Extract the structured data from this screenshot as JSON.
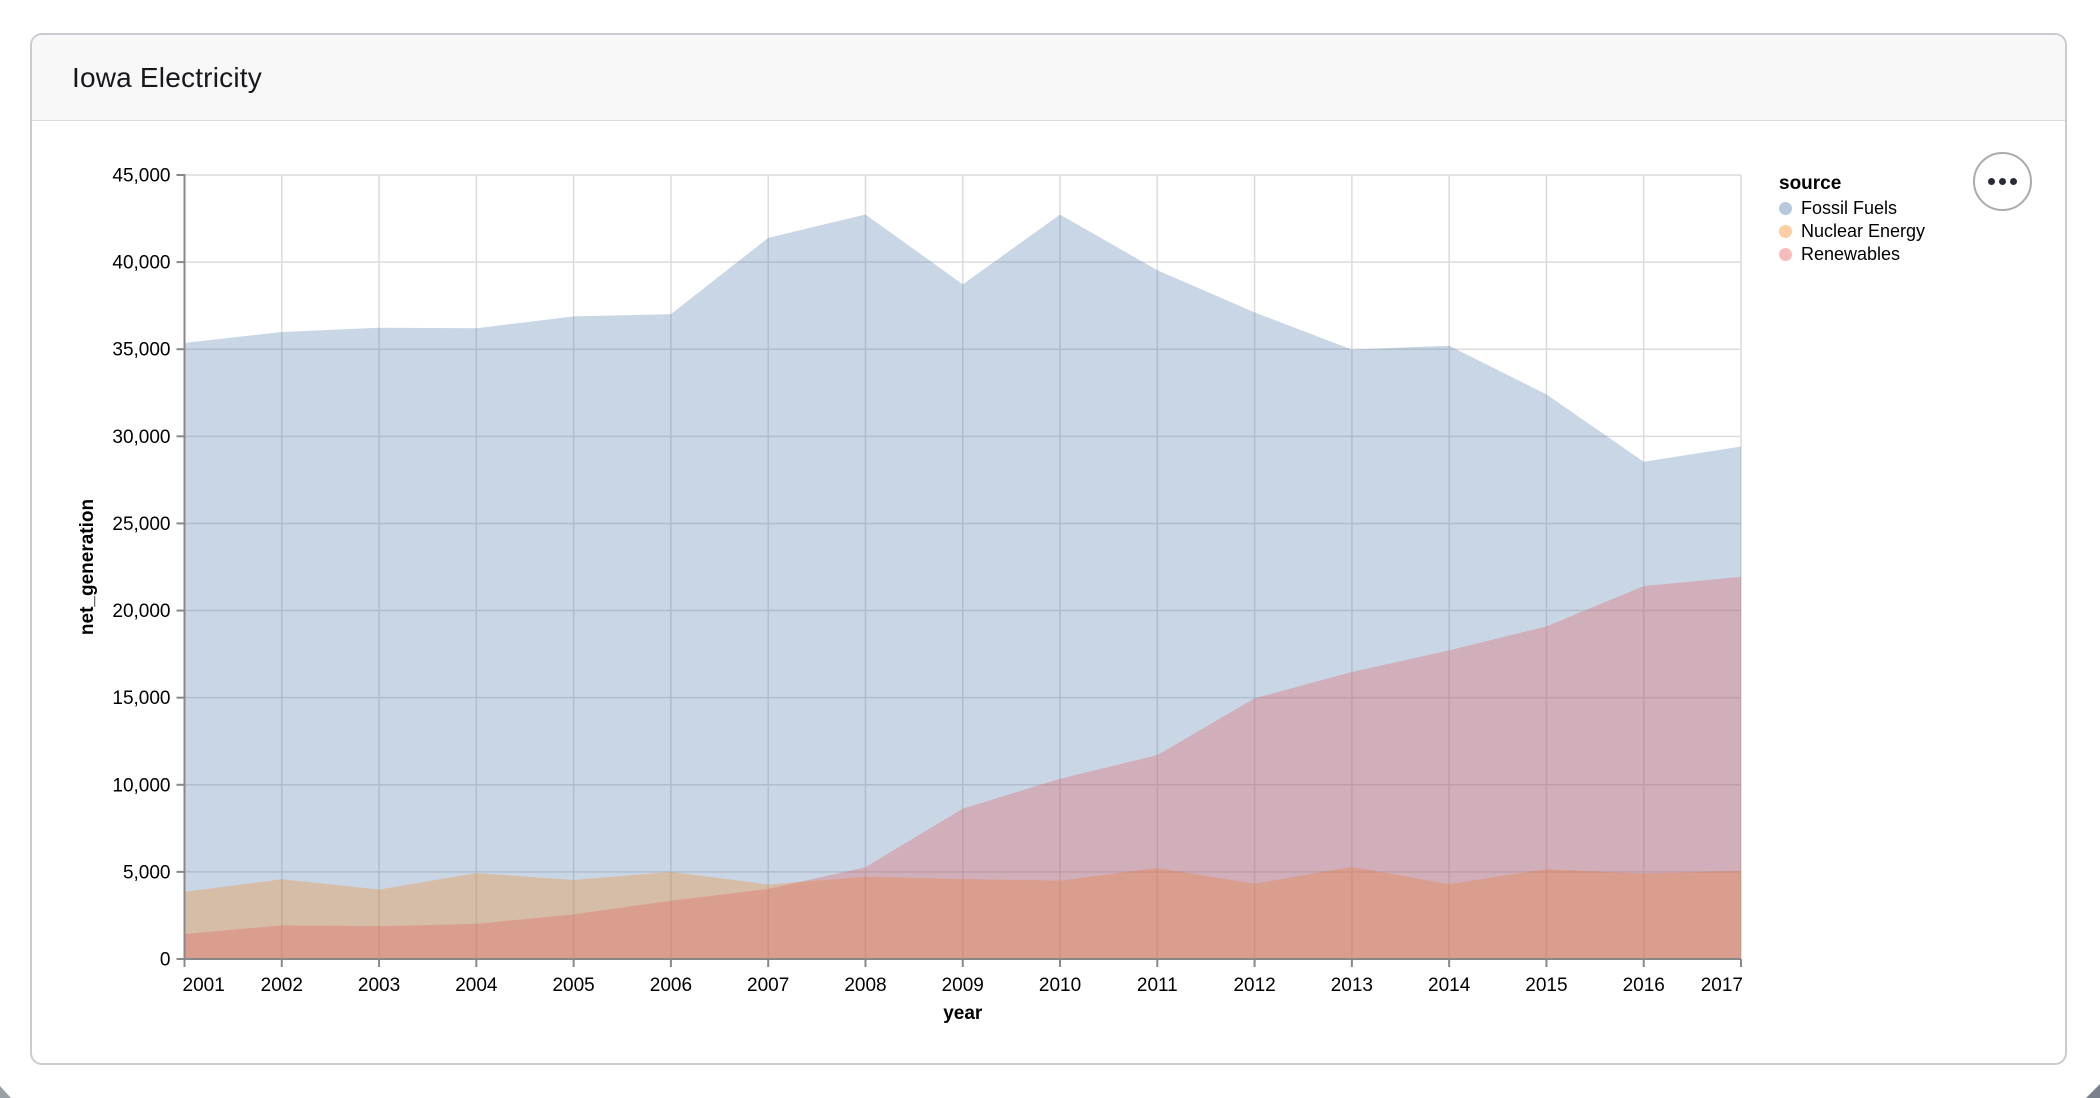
{
  "window": {
    "title": "Iowa Electricity"
  },
  "toolbar": {
    "options_icon": "ellipsis-menu-icon"
  },
  "chart_data": {
    "type": "area",
    "variant": "layered-overlapping-areas",
    "title": "",
    "xlabel": "year",
    "ylabel": "net_generation",
    "x": [
      2001,
      2002,
      2003,
      2004,
      2005,
      2006,
      2007,
      2008,
      2009,
      2010,
      2011,
      2012,
      2013,
      2014,
      2015,
      2016,
      2017
    ],
    "x_tick_labels": [
      "2001",
      "2002",
      "2003",
      "2004",
      "2005",
      "2006",
      "2007",
      "2008",
      "2009",
      "2010",
      "2011",
      "2012",
      "2013",
      "2014",
      "2015",
      "2016",
      "2017"
    ],
    "y_tick_labels": [
      "0",
      "5,000",
      "10,000",
      "15,000",
      "20,000",
      "25,000",
      "30,000",
      "35,000",
      "40,000",
      "45,000"
    ],
    "ylim": [
      0,
      45000
    ],
    "y_tick_step": 5000,
    "grid": true,
    "area_opacity": 0.3,
    "axis_color": "#888888",
    "grid_color": "#dcdcdc",
    "label_color": "#000000",
    "series": [
      {
        "name": "Fossil Fuels",
        "color": "#4c78a8",
        "values": [
          35361,
          35991,
          36234,
          36205,
          36883,
          37014,
          41389,
          42734,
          38725,
          42725,
          39535,
          37115,
          34980,
          35198,
          32411,
          28542,
          29420
        ]
      },
      {
        "name": "Nuclear Energy",
        "color": "#f58518",
        "values": [
          3853,
          4574,
          3988,
          4929,
          4538,
          5004,
          4279,
          4724,
          4588,
          4498,
          5220,
          4316,
          5294,
          4298,
          5161,
          4903,
          5070
        ]
      },
      {
        "name": "Renewables",
        "color": "#e45756",
        "values": [
          1437,
          1928,
          1885,
          2013,
          2564,
          3341,
          4020,
          5269,
          8631,
          10348,
          11700,
          14962,
          16470,
          17716,
          19091,
          21404,
          21933
        ]
      }
    ],
    "legend": {
      "title": "source",
      "position": "right",
      "swatch_colors": [
        "#b7c9dc",
        "#fbcea3",
        "#f4bcbb"
      ]
    }
  }
}
